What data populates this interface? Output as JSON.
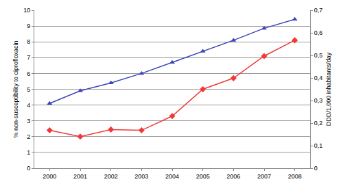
{
  "chart_data": {
    "type": "line",
    "categories": [
      "2000",
      "2001",
      "2002",
      "2003",
      "2004",
      "2005",
      "2006",
      "2007",
      "2008"
    ],
    "y_label": "% non-susceptibility to ciprofloxacin",
    "y2_label": "DDD/1,000 inhabitants/day",
    "ylim": [
      0,
      10
    ],
    "yticks": [
      0,
      1,
      2,
      3,
      4,
      5,
      6,
      7,
      8,
      9,
      10
    ],
    "y2lim": [
      0,
      0.7
    ],
    "y2ticks": [
      0,
      {
        "value": 0.1,
        "label": "0,1"
      },
      {
        "value": 0.2,
        "label": "0,2"
      },
      {
        "value": 0.3,
        "label": "0,3"
      },
      {
        "value": 0.4,
        "label": "0,4"
      },
      {
        "value": 0.5,
        "label": "0,5"
      },
      {
        "value": 0.6,
        "label": "0,6"
      },
      {
        "value": 0.7,
        "label": "0,7"
      }
    ],
    "grid": true,
    "series": [
      {
        "color": "#3b46b8",
        "marker": "triangle",
        "axis": "y2",
        "values": [
          0.287,
          0.343,
          0.378,
          0.42,
          0.469,
          0.518,
          0.567,
          0.62,
          0.66
        ]
      },
      {
        "color": "#f03a3a",
        "marker": "diamond",
        "axis": "y",
        "values": [
          2.4,
          2.0,
          2.45,
          2.4,
          3.3,
          5.0,
          5.7,
          7.1,
          8.1
        ]
      }
    ]
  }
}
